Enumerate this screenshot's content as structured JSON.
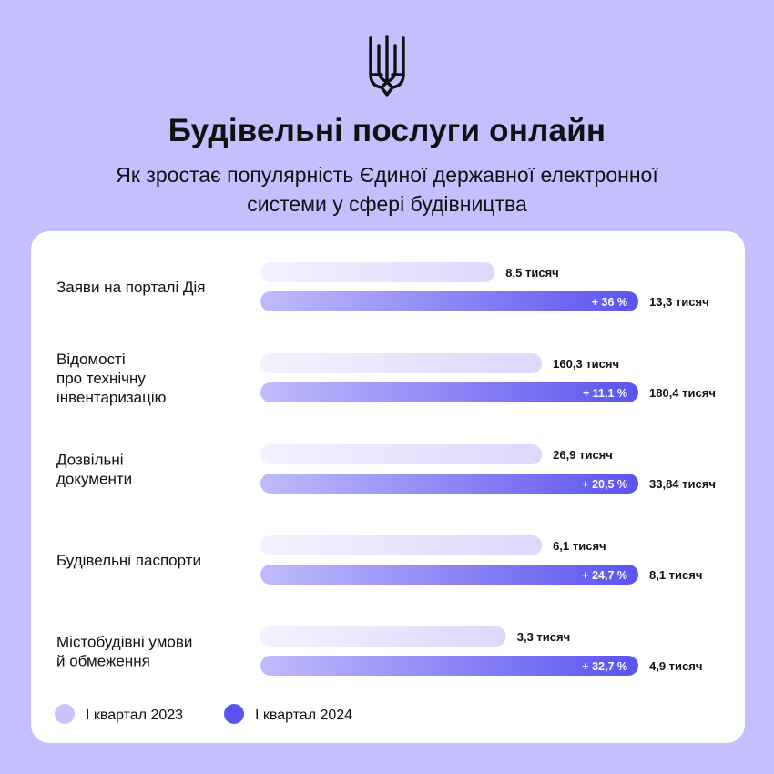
{
  "header": {
    "title": "Будівельні послуги онлайн",
    "subtitle_lines": [
      "Як зростає популярність Єдиної державної електронної",
      "системи у сфері будівництва"
    ]
  },
  "colors": {
    "background": "#c4c0ff",
    "card": "#ffffff",
    "bar_2023_start": "#f4f2ff",
    "bar_2023_end": "#dcd8fb",
    "bar_2024_start": "#c0bcfb",
    "bar_2024_end": "#5b53f0",
    "legend_2023": "#c9c4fb",
    "legend_2024": "#5b53f0"
  },
  "chart_data": {
    "type": "bar",
    "orientation": "horizontal",
    "categories": [
      {
        "label_lines": [
          "Заяви на порталі Дія"
        ]
      },
      {
        "label_lines": [
          "Відомості",
          "про технічну",
          "інвентаризацію"
        ]
      },
      {
        "label_lines": [
          "Дозвільні",
          "документи"
        ]
      },
      {
        "label_lines": [
          "Будівельні паспорти"
        ]
      },
      {
        "label_lines": [
          "Містобудівні умови",
          "й обмеження"
        ]
      }
    ],
    "series": [
      {
        "name": "І квартал 2023",
        "value_labels": [
          "8,5 тисяч",
          "160,3 тисяч",
          "26,9 тисяч",
          "6,1 тисяч",
          "3,3 тисяч"
        ]
      },
      {
        "name": "І квартал 2024",
        "value_labels": [
          "13,3 тисяч",
          "180,4 тисяч",
          "33,84 тисяч",
          "8,1 тисяч",
          "4,9 тисяч"
        ],
        "growth_labels": [
          "+ 36 %",
          "+ 11,1 %",
          "+ 20,5 %",
          "+ 24,7 %",
          "+ 32,7 %"
        ]
      }
    ],
    "relative_bar_length": {
      "2023": [
        0.62,
        0.745,
        0.745,
        0.745,
        0.65
      ],
      "2024": [
        1.0,
        1.0,
        1.0,
        1.0,
        1.0
      ]
    },
    "legend_position": "bottom-left"
  }
}
